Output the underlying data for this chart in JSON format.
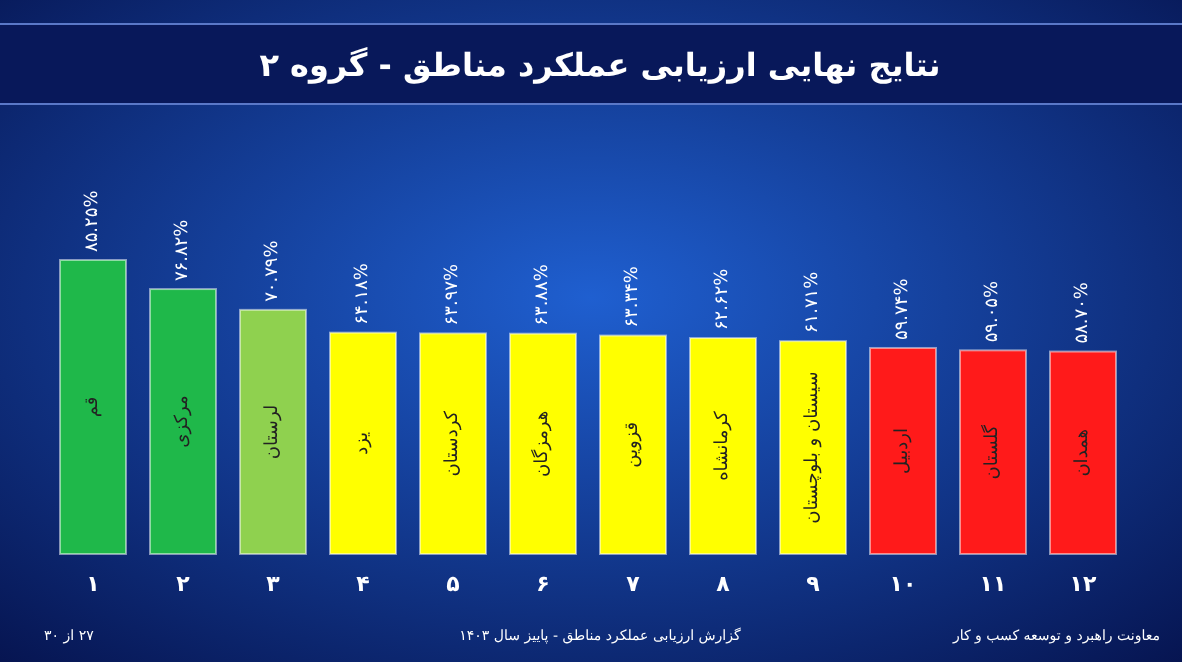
{
  "chart_data": {
    "type": "bar",
    "title": "نتایج نهایی ارزیابی عملکرد مناطق - گروه ۲",
    "categories": [
      "قم",
      "مرکزی",
      "لرستان",
      "یزد",
      "کردستان",
      "هرمزگان",
      "قزوین",
      "کرمانشاه",
      "سیستان و بلوچستان",
      "اردبیل",
      "گلستان",
      "همدان"
    ],
    "values": [
      85.25,
      76.82,
      70.79,
      64.18,
      63.97,
      63.88,
      63.34,
      62.62,
      61.71,
      59.74,
      59.05,
      58.7
    ],
    "value_labels": [
      "۸۵.۲۵%",
      "۷۶.۸۲%",
      "۷۰.۷۹%",
      "۶۴.۱۸%",
      "۶۳.۹۷%",
      "۶۳.۸۸%",
      "۶۳.۳۴%",
      "۶۲.۶۲%",
      "۶۱.۷۱%",
      "۵۹.۷۴%",
      "۵۹.۰۵%",
      "۵۸.۷۰%"
    ],
    "colors": [
      "#1fb84a",
      "#1fb84a",
      "#8fd14f",
      "#ffff00",
      "#ffff00",
      "#ffff00",
      "#ffff00",
      "#ffff00",
      "#ffff00",
      "#ff1a1a",
      "#ff1a1a",
      "#ff1a1a"
    ],
    "annotations": [
      "۱",
      "۲",
      "۳",
      "۴",
      "۵",
      "۶",
      "۷",
      "۸",
      "۹",
      "۱۰",
      "۱۱",
      "۱۲",
      "معاونت راهبرد و توسعه کسب و کار",
      "گزارش ارزیابی عملکرد مناطق - پاییز سال ۱۴۰۳",
      "۲۷ از ۳۰"
    ]
  }
}
